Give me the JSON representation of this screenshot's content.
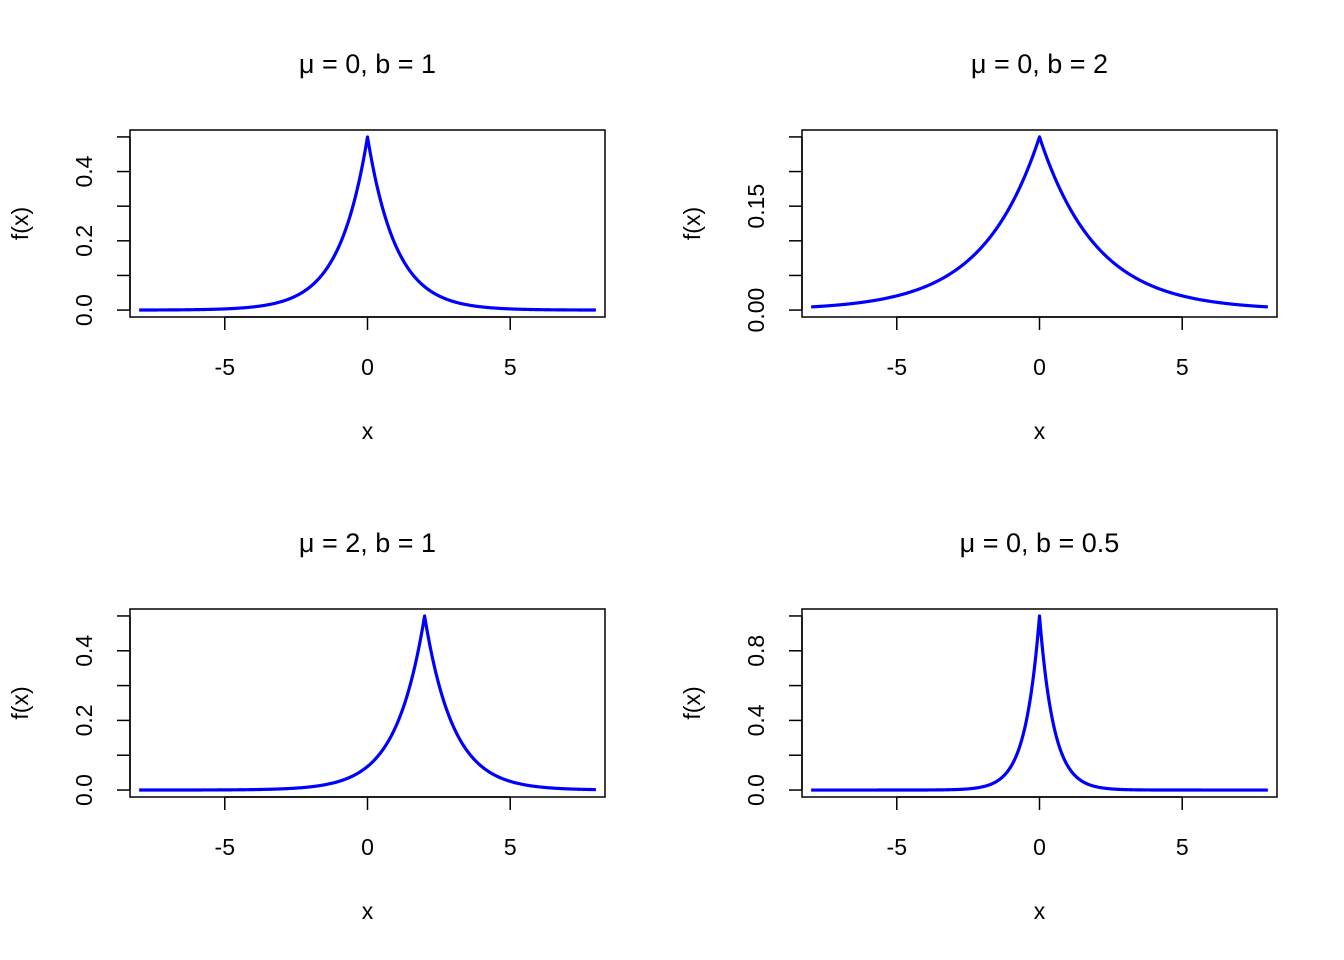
{
  "chart_data": [
    {
      "type": "line",
      "title": "μ = 0,  b = 1",
      "mu": 0,
      "b": 1,
      "xlabel": "x",
      "ylabel": "f(x)",
      "xlim": [
        -8,
        8
      ],
      "xticks": [
        -5,
        0,
        5
      ],
      "xtick_labels": [
        "-5",
        "0",
        "5"
      ],
      "yticks": [
        0,
        0.1,
        0.2,
        0.3,
        0.4,
        0.5
      ],
      "ytick_labels": [
        "0.0",
        "",
        "0.2",
        "",
        "0.4",
        ""
      ],
      "ymax": 0.5,
      "color": "#0000ff"
    },
    {
      "type": "line",
      "title": "μ = 0,  b = 2",
      "mu": 0,
      "b": 2,
      "xlabel": "x",
      "ylabel": "f(x)",
      "xlim": [
        -8,
        8
      ],
      "xticks": [
        -5,
        0,
        5
      ],
      "xtick_labels": [
        "-5",
        "0",
        "5"
      ],
      "yticks": [
        0,
        0.05,
        0.1,
        0.15,
        0.2,
        0.25
      ],
      "ytick_labels": [
        "0.00",
        "",
        "",
        "0.15",
        "",
        ""
      ],
      "ymax": 0.25,
      "color": "#0000ff"
    },
    {
      "type": "line",
      "title": "μ = 2,  b = 1",
      "mu": 2,
      "b": 1,
      "xlabel": "x",
      "ylabel": "f(x)",
      "xlim": [
        -8,
        8
      ],
      "xticks": [
        -5,
        0,
        5
      ],
      "xtick_labels": [
        "-5",
        "0",
        "5"
      ],
      "yticks": [
        0,
        0.1,
        0.2,
        0.3,
        0.4,
        0.5
      ],
      "ytick_labels": [
        "0.0",
        "",
        "0.2",
        "",
        "0.4",
        ""
      ],
      "ymax": 0.5,
      "color": "#0000ff"
    },
    {
      "type": "line",
      "title": "μ = 0,  b = 0.5",
      "mu": 0,
      "b": 0.5,
      "xlabel": "x",
      "ylabel": "f(x)",
      "xlim": [
        -8,
        8
      ],
      "xticks": [
        -5,
        0,
        5
      ],
      "xtick_labels": [
        "-5",
        "0",
        "5"
      ],
      "yticks": [
        0,
        0.2,
        0.4,
        0.6,
        0.8,
        1.0
      ],
      "ytick_labels": [
        "0.0",
        "",
        "0.4",
        "",
        "0.8",
        ""
      ],
      "ymax": 1.0,
      "color": "#0000ff"
    }
  ]
}
